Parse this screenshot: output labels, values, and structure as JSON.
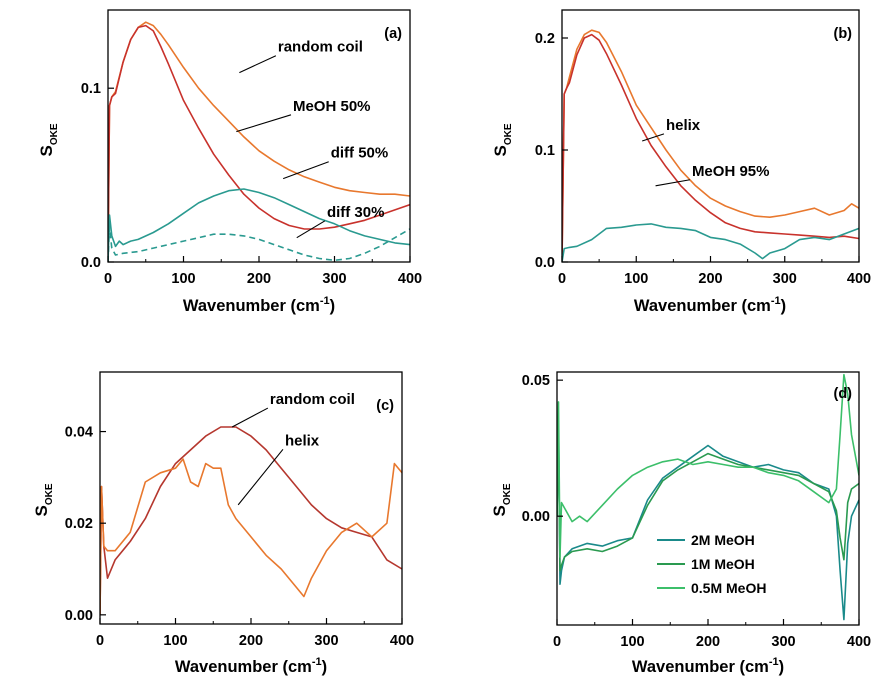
{
  "chart_data": [
    {
      "type": "line",
      "panel_label": "(a)",
      "xlabel_main": "Wavenumber (cm",
      "xlabel_sup": "-1",
      "xlabel_close": ")",
      "ylabel_main": "S",
      "ylabel_sub": "OKE",
      "xlim": [
        0,
        400
      ],
      "ylim": [
        0,
        0.145
      ],
      "xticks": [
        0,
        100,
        200,
        300,
        400
      ],
      "xtick_labels": [
        "0",
        "100",
        "200",
        "300",
        "400"
      ],
      "yticks": [
        0,
        0.1
      ],
      "ytick_labels": [
        "0.0",
        "0.1"
      ],
      "series": [
        {
          "name": "random coil",
          "color": "#e8782e",
          "dash": false,
          "x": [
            0,
            2,
            5,
            10,
            20,
            30,
            40,
            50,
            60,
            70,
            80,
            100,
            120,
            140,
            160,
            180,
            200,
            220,
            240,
            260,
            280,
            300,
            320,
            340,
            360,
            380,
            400
          ],
          "y": [
            0.0,
            0.09,
            0.095,
            0.098,
            0.115,
            0.128,
            0.135,
            0.138,
            0.136,
            0.131,
            0.125,
            0.112,
            0.1,
            0.09,
            0.081,
            0.072,
            0.064,
            0.058,
            0.053,
            0.049,
            0.046,
            0.043,
            0.041,
            0.04,
            0.039,
            0.039,
            0.038
          ]
        },
        {
          "name": "MeOH 50%",
          "color": "#c8322c",
          "dash": false,
          "x": [
            0,
            2,
            5,
            10,
            20,
            30,
            40,
            50,
            60,
            70,
            80,
            100,
            120,
            140,
            160,
            180,
            200,
            220,
            240,
            260,
            280,
            300,
            320,
            340,
            360,
            380,
            400
          ],
          "y": [
            0.0,
            0.09,
            0.095,
            0.097,
            0.115,
            0.128,
            0.135,
            0.136,
            0.133,
            0.124,
            0.114,
            0.093,
            0.077,
            0.062,
            0.05,
            0.039,
            0.031,
            0.025,
            0.021,
            0.019,
            0.019,
            0.02,
            0.022,
            0.024,
            0.027,
            0.03,
            0.033
          ]
        },
        {
          "name": "diff 50%",
          "color": "#2a9a90",
          "dash": false,
          "x": [
            0,
            2,
            5,
            10,
            15,
            20,
            30,
            40,
            60,
            80,
            100,
            120,
            140,
            160,
            180,
            200,
            220,
            240,
            260,
            280,
            300,
            320,
            340,
            360,
            380,
            400
          ],
          "y": [
            0.0,
            0.027,
            0.015,
            0.009,
            0.012,
            0.01,
            0.012,
            0.013,
            0.017,
            0.022,
            0.028,
            0.034,
            0.038,
            0.041,
            0.042,
            0.04,
            0.037,
            0.033,
            0.029,
            0.025,
            0.022,
            0.018,
            0.015,
            0.013,
            0.011,
            0.01
          ]
        },
        {
          "name": "diff 30%",
          "color": "#2a9a90",
          "dash": true,
          "x": [
            0,
            2,
            5,
            10,
            20,
            40,
            60,
            80,
            100,
            120,
            140,
            160,
            180,
            200,
            220,
            240,
            260,
            280,
            300,
            320,
            340,
            360,
            380,
            400
          ],
          "y": [
            0.0,
            0.02,
            0.008,
            0.004,
            0.005,
            0.006,
            0.008,
            0.01,
            0.012,
            0.014,
            0.016,
            0.016,
            0.015,
            0.013,
            0.01,
            0.007,
            0.004,
            0.002,
            0.001,
            0.002,
            0.005,
            0.009,
            0.014,
            0.019
          ]
        }
      ],
      "annotations": [
        {
          "text": "random coil",
          "x": 225,
          "y": 0.121,
          "ax": 174,
          "ay": 0.109
        },
        {
          "text": "MeOH 50%",
          "x": 245,
          "y": 0.087,
          "ax": 170,
          "ay": 0.075
        },
        {
          "text": "diff 50%",
          "x": 295,
          "y": 0.06,
          "ax": 232,
          "ay": 0.048
        },
        {
          "text": "diff 30%",
          "x": 290,
          "y": 0.026,
          "ax": 250,
          "ay": 0.014
        }
      ]
    },
    {
      "type": "line",
      "panel_label": "(b)",
      "xlabel_main": "Wavenumber (cm",
      "xlabel_sup": "-1",
      "xlabel_close": ")",
      "ylabel_main": "S",
      "ylabel_sub": "OKE",
      "xlim": [
        0,
        400
      ],
      "ylim": [
        0,
        0.225
      ],
      "xticks": [
        0,
        100,
        200,
        300,
        400
      ],
      "xtick_labels": [
        "0",
        "100",
        "200",
        "300",
        "400"
      ],
      "yticks": [
        0,
        0.1,
        0.2
      ],
      "ytick_labels": [
        "0.0",
        "0.1",
        "0.2"
      ],
      "series": [
        {
          "name": "helix",
          "color": "#e8782e",
          "dash": false,
          "x": [
            0,
            3,
            6,
            10,
            20,
            30,
            40,
            50,
            60,
            80,
            100,
            120,
            140,
            160,
            180,
            200,
            220,
            240,
            260,
            280,
            300,
            320,
            340,
            360,
            380,
            390,
            400
          ],
          "y": [
            0.0,
            0.15,
            0.155,
            0.165,
            0.19,
            0.203,
            0.207,
            0.205,
            0.196,
            0.17,
            0.14,
            0.12,
            0.1,
            0.082,
            0.068,
            0.057,
            0.05,
            0.045,
            0.041,
            0.04,
            0.042,
            0.045,
            0.048,
            0.042,
            0.046,
            0.052,
            0.048
          ]
        },
        {
          "name": "MeOH 95%",
          "color": "#c8322c",
          "dash": false,
          "x": [
            0,
            3,
            6,
            10,
            20,
            30,
            40,
            50,
            60,
            80,
            100,
            120,
            140,
            160,
            180,
            200,
            220,
            240,
            260,
            280,
            300,
            320,
            340,
            360,
            380,
            400
          ],
          "y": [
            0.0,
            0.15,
            0.155,
            0.16,
            0.185,
            0.2,
            0.203,
            0.198,
            0.186,
            0.158,
            0.128,
            0.104,
            0.085,
            0.068,
            0.055,
            0.044,
            0.035,
            0.03,
            0.027,
            0.026,
            0.025,
            0.024,
            0.023,
            0.022,
            0.023,
            0.021
          ]
        },
        {
          "name": "",
          "color": "#2a9a90",
          "dash": false,
          "x": [
            0,
            3,
            10,
            20,
            40,
            60,
            80,
            100,
            120,
            140,
            160,
            180,
            200,
            220,
            240,
            260,
            270,
            280,
            300,
            320,
            340,
            360,
            380,
            400
          ],
          "y": [
            0.0,
            0.012,
            0.013,
            0.014,
            0.02,
            0.03,
            0.031,
            0.033,
            0.034,
            0.031,
            0.03,
            0.028,
            0.022,
            0.02,
            0.016,
            0.008,
            0.003,
            0.008,
            0.012,
            0.02,
            0.022,
            0.02,
            0.025,
            0.03
          ]
        }
      ],
      "annotations": [
        {
          "text": "helix",
          "x": 140,
          "y": 0.118,
          "ax": 108,
          "ay": 0.108
        },
        {
          "text": "MeOH 95%",
          "x": 175,
          "y": 0.077,
          "ax": 126,
          "ay": 0.068
        }
      ]
    },
    {
      "type": "line",
      "panel_label": "(c)",
      "xlabel_main": "Wavenumber (cm",
      "xlabel_sup": "-1",
      "xlabel_close": ")",
      "ylabel_main": "S",
      "ylabel_sub": "OKE",
      "xlim": [
        0,
        400
      ],
      "ylim": [
        -0.002,
        0.053
      ],
      "xticks": [
        0,
        100,
        200,
        300,
        400
      ],
      "xtick_labels": [
        "0",
        "100",
        "200",
        "300",
        "400"
      ],
      "yticks": [
        0,
        0.02,
        0.04
      ],
      "ytick_labels": [
        "0.00",
        "0.02",
        "0.04"
      ],
      "series": [
        {
          "name": "random coil",
          "color": "#b5372e",
          "dash": false,
          "x": [
            0,
            2,
            5,
            10,
            20,
            40,
            60,
            80,
            100,
            120,
            140,
            160,
            180,
            200,
            220,
            240,
            260,
            280,
            300,
            320,
            340,
            360,
            380,
            400
          ],
          "y": [
            0.0,
            0.028,
            0.015,
            0.008,
            0.012,
            0.016,
            0.021,
            0.028,
            0.033,
            0.036,
            0.039,
            0.041,
            0.041,
            0.039,
            0.036,
            0.032,
            0.028,
            0.024,
            0.021,
            0.019,
            0.018,
            0.017,
            0.012,
            0.01
          ]
        },
        {
          "name": "helix",
          "color": "#e8782e",
          "dash": false,
          "x": [
            0,
            2,
            5,
            10,
            20,
            40,
            60,
            80,
            100,
            110,
            120,
            130,
            140,
            150,
            160,
            170,
            180,
            200,
            220,
            240,
            260,
            270,
            280,
            300,
            320,
            340,
            360,
            380,
            390,
            400
          ],
          "y": [
            0.0,
            0.028,
            0.015,
            0.014,
            0.014,
            0.018,
            0.029,
            0.031,
            0.032,
            0.034,
            0.029,
            0.028,
            0.033,
            0.032,
            0.032,
            0.024,
            0.021,
            0.017,
            0.013,
            0.01,
            0.006,
            0.004,
            0.008,
            0.014,
            0.018,
            0.02,
            0.017,
            0.02,
            0.033,
            0.031
          ]
        }
      ],
      "annotations": [
        {
          "text": "random coil",
          "x": 225,
          "y": 0.046,
          "ax": 175,
          "ay": 0.041
        },
        {
          "text": "helix",
          "x": 245,
          "y": 0.037,
          "ax": 183,
          "ay": 0.024
        }
      ]
    },
    {
      "type": "line",
      "panel_label": "(d)",
      "xlabel_main": "Wavenumber (cm",
      "xlabel_sup": "-1",
      "xlabel_close": ")",
      "ylabel_main": "S",
      "ylabel_sub": "OKE",
      "xlim": [
        0,
        400
      ],
      "ylim": [
        -0.04,
        0.053
      ],
      "xticks": [
        0,
        100,
        200,
        300,
        400
      ],
      "xtick_labels": [
        "0",
        "100",
        "200",
        "300",
        "400"
      ],
      "yticks": [
        0,
        0.05
      ],
      "ytick_labels": [
        "0.00",
        "0.05"
      ],
      "legend": {
        "placement": "bottom-right"
      },
      "series": [
        {
          "name": "2M MeOH",
          "color": "#1a8a8a",
          "dash": false,
          "x": [
            0,
            2,
            4,
            6,
            10,
            20,
            40,
            60,
            80,
            100,
            120,
            140,
            160,
            180,
            200,
            220,
            240,
            260,
            280,
            300,
            320,
            340,
            360,
            370,
            375,
            380,
            385,
            390,
            400
          ],
          "y": [
            0.0,
            0.035,
            -0.025,
            -0.02,
            -0.015,
            -0.012,
            -0.01,
            -0.011,
            -0.009,
            -0.008,
            0.006,
            0.014,
            0.018,
            0.022,
            0.026,
            0.022,
            0.02,
            0.018,
            0.019,
            0.017,
            0.016,
            0.012,
            0.01,
            0.0,
            -0.02,
            -0.038,
            -0.01,
            0.0,
            0.006
          ]
        },
        {
          "name": "1M MeOH",
          "color": "#2a9a50",
          "dash": false,
          "x": [
            0,
            2,
            4,
            6,
            10,
            20,
            40,
            60,
            80,
            100,
            120,
            140,
            160,
            180,
            200,
            220,
            240,
            260,
            280,
            300,
            320,
            340,
            360,
            370,
            375,
            380,
            385,
            390,
            400
          ],
          "y": [
            0.0,
            0.03,
            -0.02,
            -0.018,
            -0.015,
            -0.013,
            -0.012,
            -0.013,
            -0.011,
            -0.008,
            0.004,
            0.013,
            0.017,
            0.02,
            0.023,
            0.021,
            0.019,
            0.018,
            0.017,
            0.016,
            0.015,
            0.012,
            0.009,
            0.002,
            -0.008,
            -0.016,
            0.005,
            0.01,
            0.012
          ]
        },
        {
          "name": "0.5M MeOH",
          "color": "#3cbf6a",
          "dash": false,
          "x": [
            0,
            2,
            4,
            6,
            10,
            20,
            30,
            40,
            60,
            80,
            100,
            120,
            140,
            160,
            180,
            200,
            220,
            240,
            260,
            280,
            300,
            320,
            340,
            360,
            370,
            375,
            380,
            385,
            390,
            400
          ],
          "y": [
            0.0,
            0.042,
            -0.015,
            0.005,
            0.003,
            -0.002,
            0.0,
            -0.002,
            0.004,
            0.01,
            0.015,
            0.018,
            0.02,
            0.021,
            0.019,
            0.02,
            0.019,
            0.018,
            0.018,
            0.016,
            0.015,
            0.013,
            0.009,
            0.005,
            0.01,
            0.03,
            0.052,
            0.045,
            0.03,
            0.015
          ]
        }
      ]
    }
  ]
}
